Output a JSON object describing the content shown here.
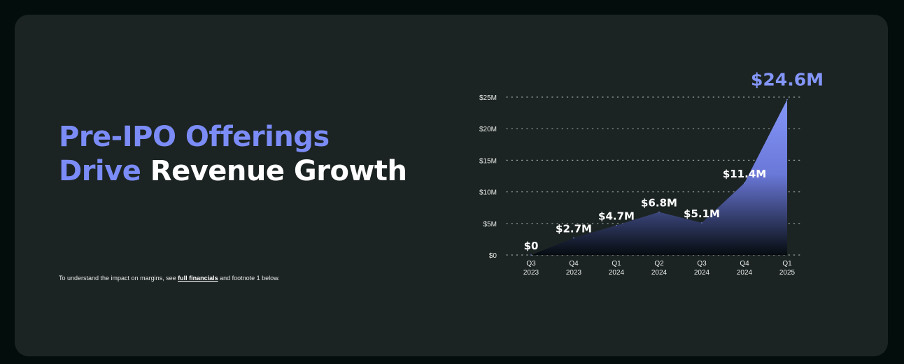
{
  "headline": {
    "line1_accent": "Pre-IPO Offerings",
    "line2_accent": "Drive",
    "line2_plain": "Revenue Growth"
  },
  "footnote": {
    "prefix": "To understand the impact on margins, see ",
    "link": "full financials",
    "suffix": " and footnote 1 below."
  },
  "colors": {
    "background": "#030d0c",
    "card": "#1c2423",
    "accent": "#7b8cf7",
    "area_top": "#8496f9",
    "area_bottom": "#060c10"
  },
  "chart_data": {
    "type": "area",
    "title": "",
    "xlabel": "",
    "ylabel": "",
    "ylim": [
      0,
      25
    ],
    "grid": true,
    "y_ticks": [
      {
        "value": 0,
        "label": "$0"
      },
      {
        "value": 5,
        "label": "$5M"
      },
      {
        "value": 10,
        "label": "$10M"
      },
      {
        "value": 15,
        "label": "$15M"
      },
      {
        "value": 20,
        "label": "$20M"
      },
      {
        "value": 25,
        "label": "$25M"
      }
    ],
    "categories": [
      {
        "quarter": "Q3",
        "year": "2023"
      },
      {
        "quarter": "Q4",
        "year": "2023"
      },
      {
        "quarter": "Q1",
        "year": "2024"
      },
      {
        "quarter": "Q2",
        "year": "2024"
      },
      {
        "quarter": "Q3",
        "year": "2024"
      },
      {
        "quarter": "Q4",
        "year": "2024"
      },
      {
        "quarter": "Q1",
        "year": "2025"
      }
    ],
    "values": [
      0,
      2.7,
      4.7,
      6.8,
      5.1,
      11.4,
      24.6
    ],
    "data_labels": [
      "$0",
      "$2.7M",
      "$4.7M",
      "$6.8M",
      "$5.1M",
      "$11.4M",
      "$24.6M"
    ]
  }
}
